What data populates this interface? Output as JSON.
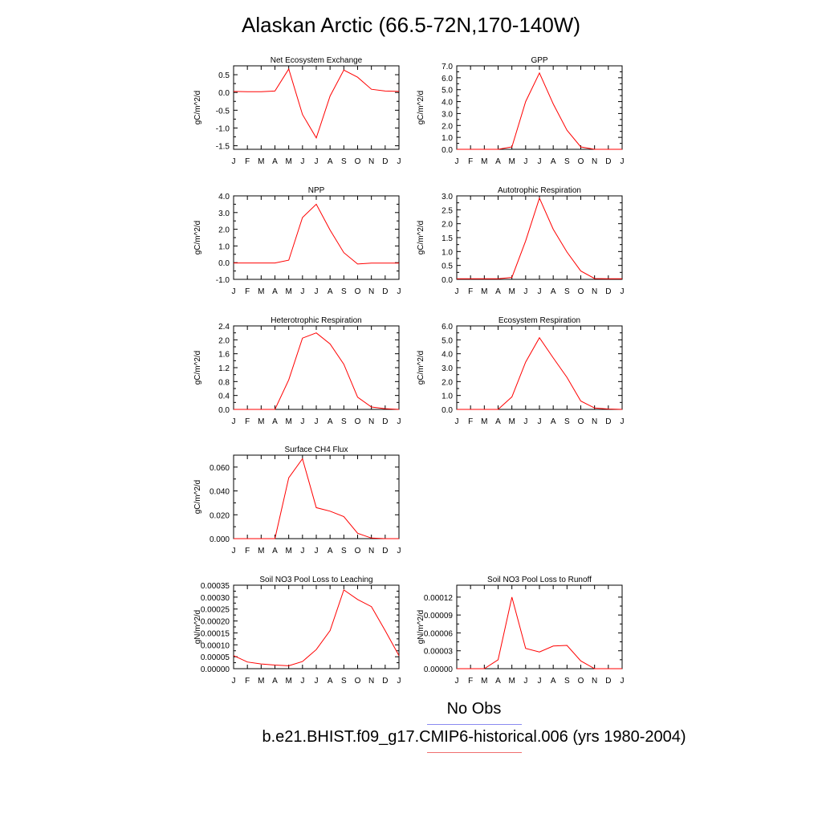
{
  "title": "Alaskan Arctic (66.5-72N,170-140W)",
  "legend": {
    "obs_label": "No Obs",
    "obs_color": "#8a8af0",
    "case_label": "b.e21.BHIST.f09_g17.CMIP6-historical.006 (yrs 1980-2004)",
    "case_color": "#f07070"
  },
  "colors": {
    "series": "#ff0000",
    "axis": "#000000"
  },
  "chart_data": [
    {
      "type": "line",
      "title": "Net Ecosystem Exchange",
      "ylabel": "gC/m^2/d",
      "x": [
        "J",
        "F",
        "M",
        "A",
        "M",
        "J",
        "J",
        "A",
        "S",
        "O",
        "N",
        "D",
        "J"
      ],
      "ylim": [
        -1.6,
        0.75
      ],
      "yticks": [
        -1.5,
        -1.0,
        -0.5,
        0.0,
        0.5
      ],
      "ytick_labels": [
        "-1.5",
        "-1.0",
        "-0.5",
        "0.0",
        "0.5"
      ],
      "series": [
        {
          "values": [
            0.03,
            0.02,
            0.02,
            0.04,
            0.66,
            -0.62,
            -1.28,
            -0.1,
            0.63,
            0.43,
            0.09,
            0.04,
            0.03
          ]
        }
      ]
    },
    {
      "type": "line",
      "title": "GPP",
      "ylabel": "gC/m^2/d",
      "x": [
        "J",
        "F",
        "M",
        "A",
        "M",
        "J",
        "J",
        "A",
        "S",
        "O",
        "N",
        "D",
        "J"
      ],
      "ylim": [
        0,
        7.0
      ],
      "yticks": [
        0,
        1,
        2,
        3,
        4,
        5,
        6,
        7
      ],
      "ytick_labels": [
        "0.0",
        "1.0",
        "2.0",
        "3.0",
        "4.0",
        "5.0",
        "6.0",
        "7.0"
      ],
      "series": [
        {
          "values": [
            0,
            0,
            0,
            0,
            0.2,
            4.0,
            6.4,
            3.8,
            1.6,
            0.2,
            0,
            0,
            0
          ]
        }
      ]
    },
    {
      "type": "line",
      "title": "NPP",
      "ylabel": "gC/m^2/d",
      "x": [
        "J",
        "F",
        "M",
        "A",
        "M",
        "J",
        "J",
        "A",
        "S",
        "O",
        "N",
        "D",
        "J"
      ],
      "ylim": [
        -1.0,
        4.0
      ],
      "yticks": [
        -1,
        0,
        1,
        2,
        3,
        4
      ],
      "ytick_labels": [
        "-1.0",
        "0.0",
        "1.0",
        "2.0",
        "3.0",
        "4.0"
      ],
      "series": [
        {
          "values": [
            -0.02,
            -0.02,
            -0.02,
            -0.02,
            0.15,
            2.7,
            3.5,
            1.95,
            0.6,
            -0.08,
            -0.03,
            -0.03,
            -0.03
          ]
        }
      ]
    },
    {
      "type": "line",
      "title": "Autotrophic Respiration",
      "ylabel": "gC/m^2/d",
      "x": [
        "J",
        "F",
        "M",
        "A",
        "M",
        "J",
        "J",
        "A",
        "S",
        "O",
        "N",
        "D",
        "J"
      ],
      "ylim": [
        0,
        3.0
      ],
      "yticks": [
        0,
        0.5,
        1,
        1.5,
        2,
        2.5,
        3
      ],
      "ytick_labels": [
        "0.0",
        "0.5",
        "1.0",
        "1.5",
        "2.0",
        "2.5",
        "3.0"
      ],
      "series": [
        {
          "values": [
            0.02,
            0.02,
            0.02,
            0.02,
            0.07,
            1.38,
            2.92,
            1.8,
            0.98,
            0.3,
            0.03,
            0.02,
            0.02
          ]
        }
      ]
    },
    {
      "type": "line",
      "title": "Heterotrophic Respiration",
      "ylabel": "gC/m^2/d",
      "x": [
        "J",
        "F",
        "M",
        "A",
        "M",
        "J",
        "J",
        "A",
        "S",
        "O",
        "N",
        "D",
        "J"
      ],
      "ylim": [
        0,
        2.4
      ],
      "yticks": [
        0,
        0.4,
        0.8,
        1.2,
        1.6,
        2.0,
        2.4
      ],
      "ytick_labels": [
        "0.0",
        "0.4",
        "0.8",
        "1.2",
        "1.6",
        "2.0",
        "2.4"
      ],
      "series": [
        {
          "values": [
            0,
            0,
            0,
            0,
            0.85,
            2.05,
            2.2,
            1.88,
            1.3,
            0.35,
            0.07,
            0.02,
            0
          ]
        }
      ]
    },
    {
      "type": "line",
      "title": "Ecosystem Respiration",
      "ylabel": "gC/m^2/d",
      "x": [
        "J",
        "F",
        "M",
        "A",
        "M",
        "J",
        "J",
        "A",
        "S",
        "O",
        "N",
        "D",
        "J"
      ],
      "ylim": [
        0,
        6.0
      ],
      "yticks": [
        0,
        1,
        2,
        3,
        4,
        5,
        6
      ],
      "ytick_labels": [
        "0.0",
        "1.0",
        "2.0",
        "3.0",
        "4.0",
        "5.0",
        "6.0"
      ],
      "series": [
        {
          "values": [
            0,
            0,
            0,
            0,
            0.9,
            3.4,
            5.15,
            3.7,
            2.3,
            0.6,
            0.1,
            0.03,
            0
          ]
        }
      ]
    },
    {
      "type": "line",
      "title": "Surface CH4 Flux",
      "ylabel": "gC/m^2/d",
      "x": [
        "J",
        "F",
        "M",
        "A",
        "M",
        "J",
        "J",
        "A",
        "S",
        "O",
        "N",
        "D",
        "J"
      ],
      "ylim": [
        0,
        0.07
      ],
      "yticks": [
        0,
        0.02,
        0.04,
        0.06
      ],
      "ytick_labels": [
        "0.000",
        "0.020",
        "0.040",
        "0.060"
      ],
      "series": [
        {
          "values": [
            0,
            0,
            0,
            0,
            0.051,
            0.067,
            0.026,
            0.023,
            0.0185,
            0.0045,
            0.0005,
            0,
            0
          ]
        }
      ]
    },
    null,
    {
      "type": "line",
      "title": "Soil NO3 Pool Loss to Leaching",
      "ylabel": "gN/m^2/d",
      "x": [
        "J",
        "F",
        "M",
        "A",
        "M",
        "J",
        "J",
        "A",
        "S",
        "O",
        "N",
        "D",
        "J"
      ],
      "ylim": [
        0,
        0.00035
      ],
      "yticks": [
        0,
        5e-05,
        0.0001,
        0.00015,
        0.0002,
        0.00025,
        0.0003,
        0.00035
      ],
      "ytick_labels": [
        "0.00000",
        "0.00005",
        "0.00010",
        "0.00015",
        "0.00020",
        "0.00025",
        "0.00030",
        "0.00035"
      ],
      "series": [
        {
          "values": [
            5.5e-05,
            2.8e-05,
            2e-05,
            1.5e-05,
            1.2e-05,
            3e-05,
            8e-05,
            0.00016,
            0.00033,
            0.00029,
            0.00026,
            0.00016,
            5.5e-05
          ]
        }
      ]
    },
    {
      "type": "line",
      "title": "Soil NO3 Pool Loss to Runoff",
      "ylabel": "gN/m^2/d",
      "x": [
        "J",
        "F",
        "M",
        "A",
        "M",
        "J",
        "J",
        "A",
        "S",
        "O",
        "N",
        "D",
        "J"
      ],
      "ylim": [
        0,
        0.00014
      ],
      "yticks": [
        0,
        3e-05,
        6e-05,
        9e-05,
        0.00012
      ],
      "ytick_labels": [
        "0.00000",
        "0.00003",
        "0.00006",
        "0.00009",
        "0.00012"
      ],
      "series": [
        {
          "values": [
            0,
            0,
            0,
            1.5e-05,
            0.00012,
            3.4e-05,
            2.8e-05,
            3.8e-05,
            3.9e-05,
            1.3e-05,
            0,
            0,
            0
          ]
        }
      ]
    }
  ]
}
